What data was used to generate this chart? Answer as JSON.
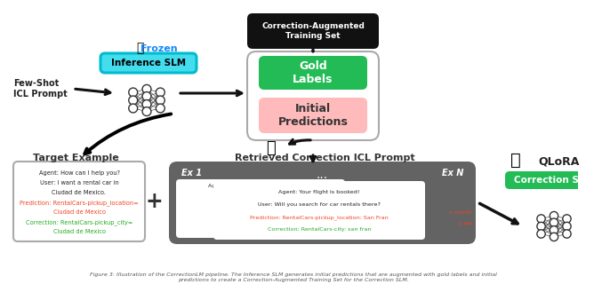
{
  "bg_color": "#ffffff",
  "top_box_text": "Correction-Augmented\nTraining Set",
  "inference_slm_text": "Inference SLM",
  "inference_slm_color": "#44ddee",
  "frozen_text": "Frozen",
  "frozen_color": "#1188ff",
  "gold_labels_text": "Gold\nLabels",
  "gold_labels_color": "#22bb55",
  "initial_pred_text": "Initial\nPredictions",
  "initial_pred_color": "#ffbbbb",
  "few_shot_text": "Few-Shot\nICL Prompt",
  "target_example_title": "Target Example",
  "target_box_lines": [
    {
      "text": "Agent: How can I help you?",
      "color": "#222222"
    },
    {
      "text": "User: I want a rental car in",
      "color": "#222222"
    },
    {
      "text": "Ciudad de Mexico.",
      "color": "#222222"
    },
    {
      "text": "Prediction: RentalCars-pickup_location=",
      "color": "#ee4422"
    },
    {
      "text": "Ciudad de Mexico",
      "color": "#ee4422"
    },
    {
      "text": "Correction: RentalCars-pickup_city=",
      "color": "#22aa22"
    },
    {
      "text": "Ciudad de Mexico",
      "color": "#22aa22"
    }
  ],
  "retrieved_title": "Retrieved Correction ICL Prompt",
  "ex1_text": "Ex 1",
  "ex_n_text": "Ex N",
  "dots_text": "...",
  "top_inner_line": {
    "text": "Agent: When do you want to pick up?",
    "color": "#222222"
  },
  "inner_box_lines": [
    {
      "text": "Agent: Your flight is booked!",
      "color": "#222222"
    },
    {
      "text": "User: Will you search for car rentals there?",
      "color": "#222222"
    },
    {
      "text": "Prediction: RentalCars-pickup_location: San Fran",
      "color": "#ee4422"
    },
    {
      "text": "Correction: RentalCars-city: san fran",
      "color": "#22aa22"
    }
  ],
  "partial_lines": [
    {
      "text": "s month",
      "color": "#ee4422"
    },
    {
      "text": "0 PM",
      "color": "#ee4422"
    }
  ],
  "qlora_text": "QLoRA",
  "correction_slm_text": "Correction SLM",
  "correction_slm_color": "#22bb55",
  "caption": "Figure 3: Illustration of the CorrectionLM pipeline. The Inference SLM generates initial predictions that are augmented with gold labels and initial\npredictions to create a Correction-Augmented Training Set for the Correction SLM."
}
